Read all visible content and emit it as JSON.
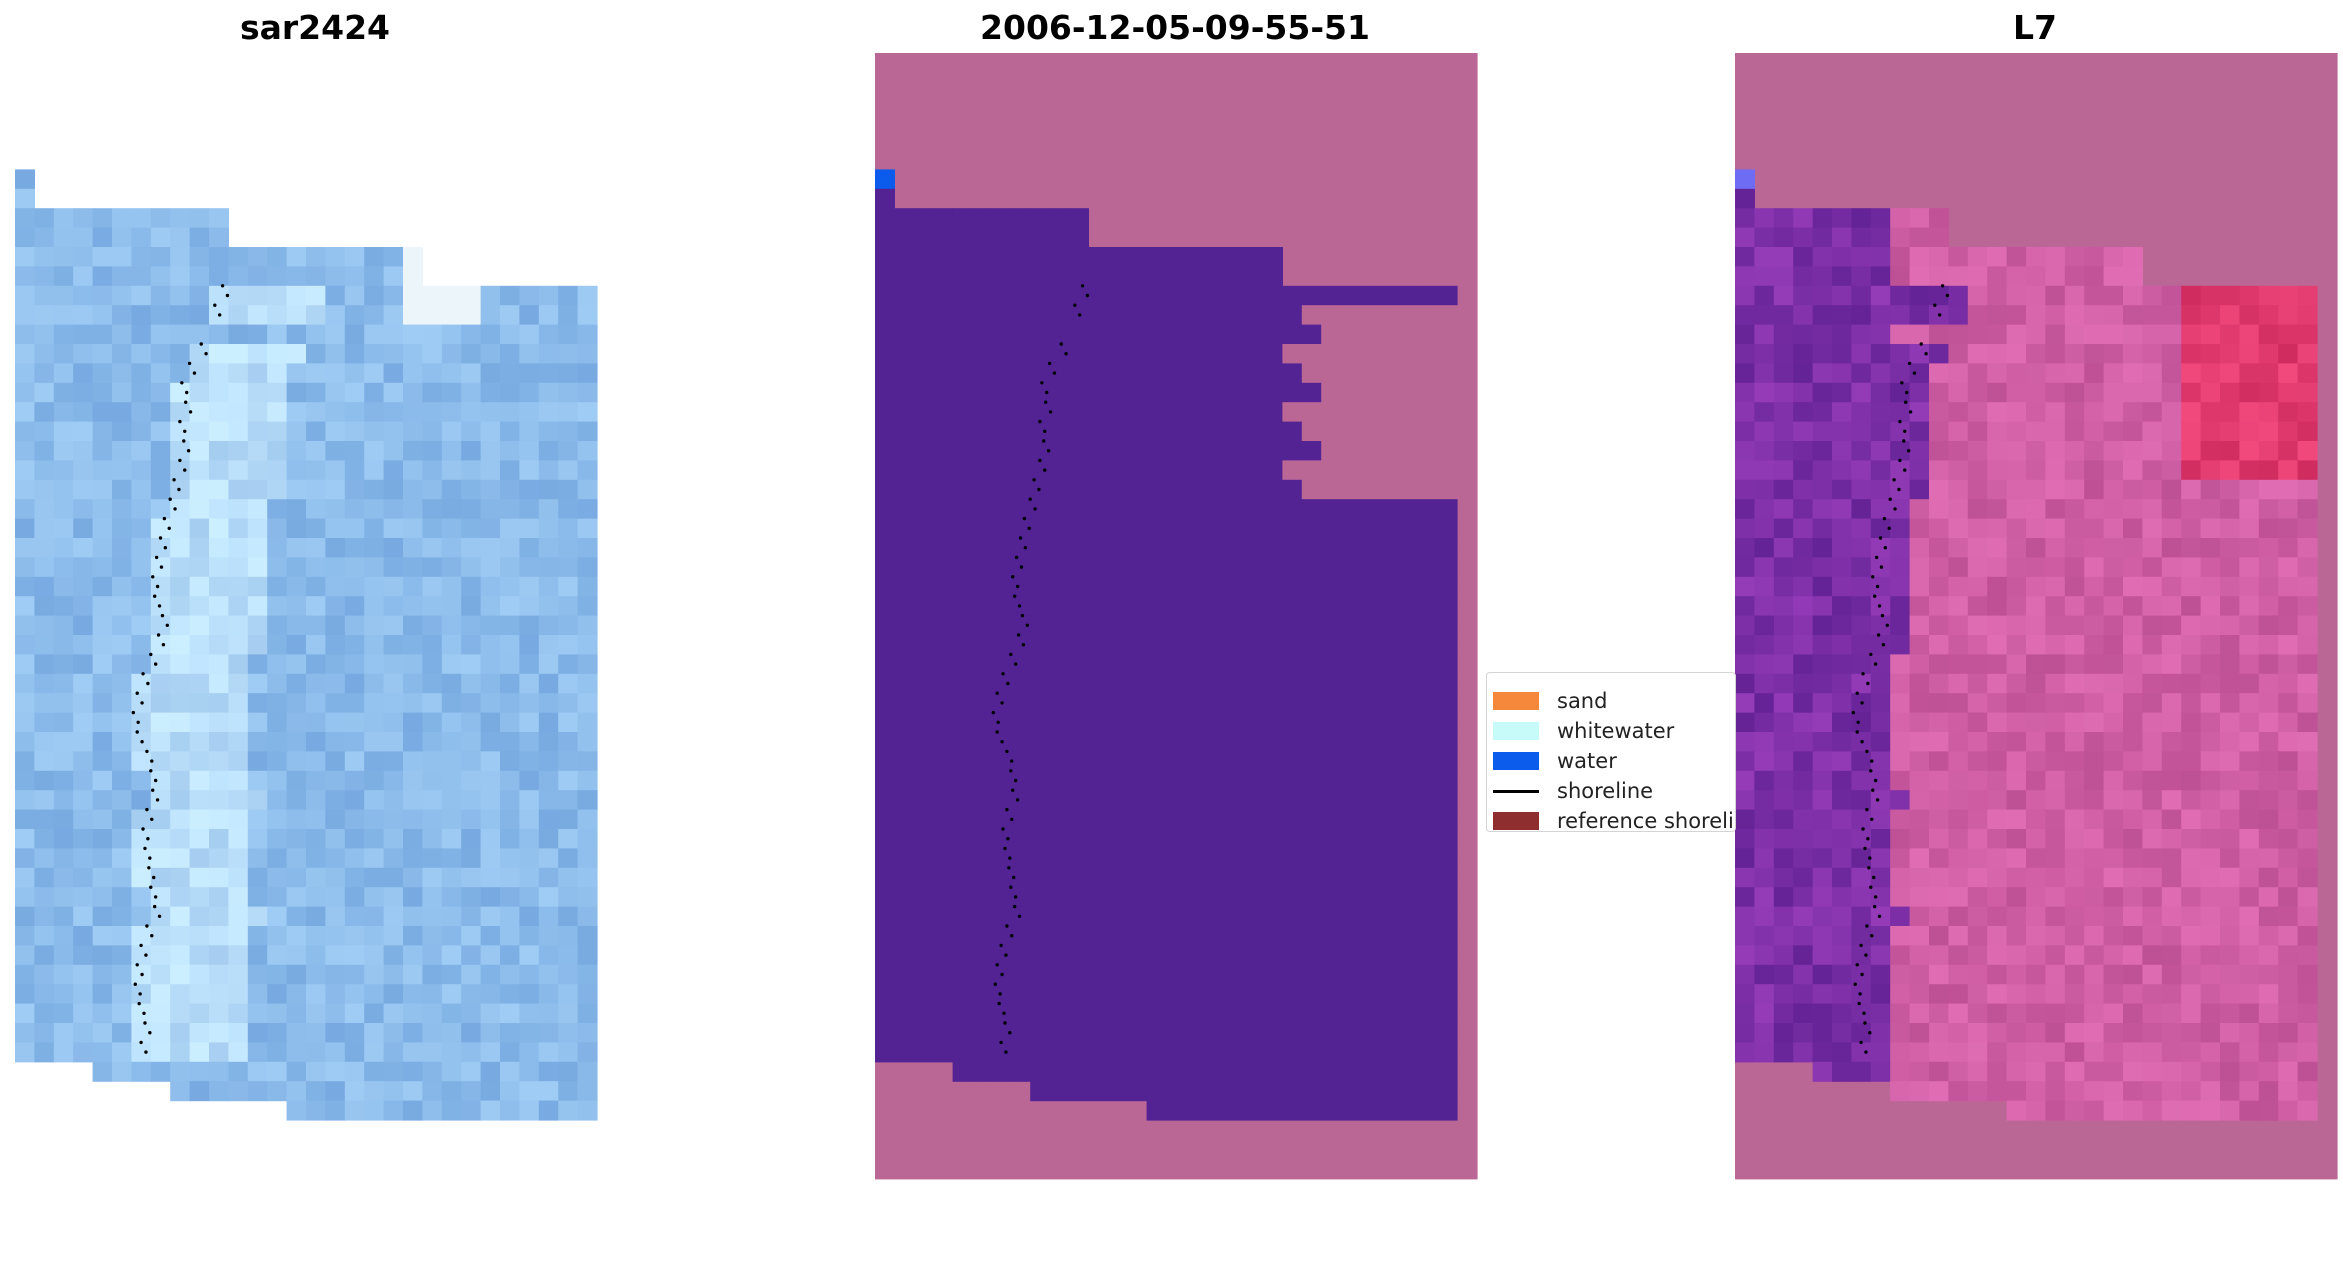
{
  "panels": [
    {
      "title": "sar2424"
    },
    {
      "title": "2006-12-05-09-55-51"
    },
    {
      "title": "L7"
    }
  ],
  "legend": {
    "items": [
      {
        "label": "sand",
        "kind": "patch",
        "color": "#f5883b"
      },
      {
        "label": "whitewater",
        "kind": "patch",
        "color": "#c7fbfa"
      },
      {
        "label": "water",
        "kind": "patch",
        "color": "#0b5cec"
      },
      {
        "label": "shoreline",
        "kind": "line",
        "color": "#000000"
      },
      {
        "label": "reference shoreline",
        "kind": "patch",
        "color": "#8e2e2e"
      }
    ]
  },
  "colors": {
    "water_class": "#532394",
    "nodata": "#bb6796",
    "shoreline_dots": "#000000"
  }
}
